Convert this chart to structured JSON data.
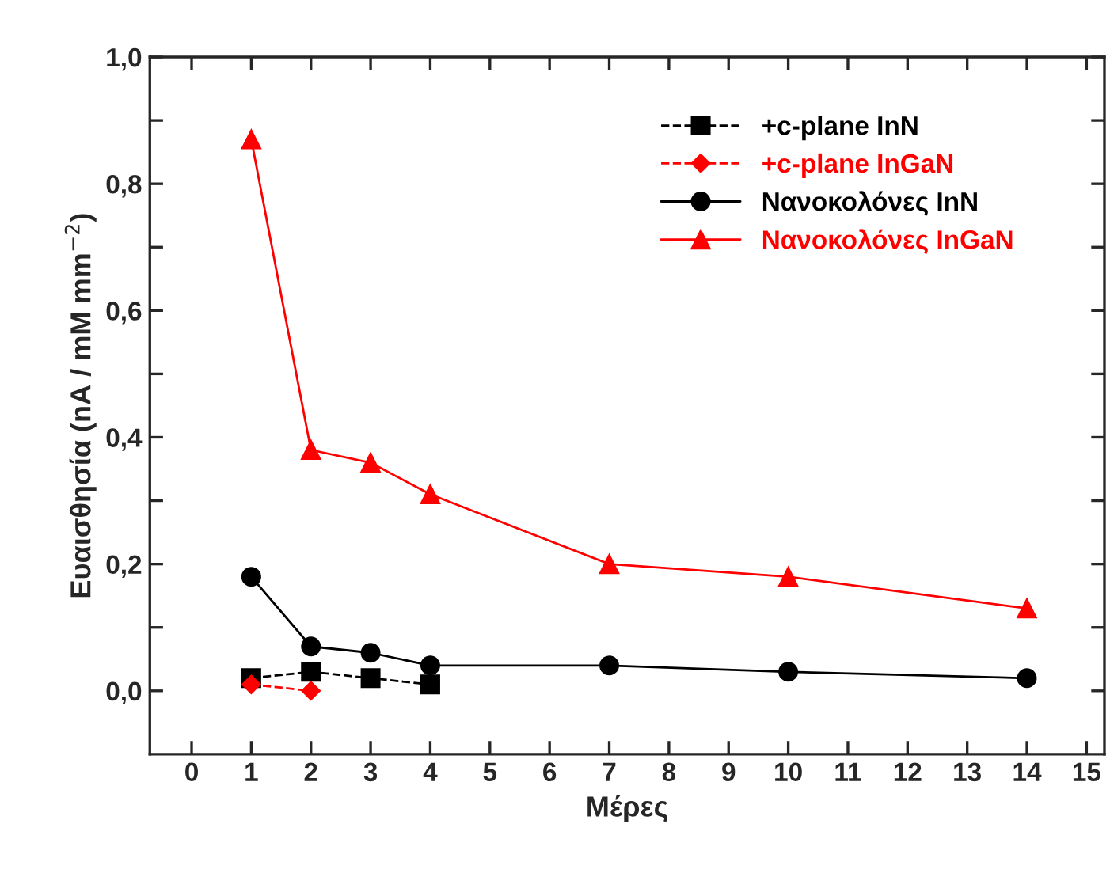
{
  "chart_data": {
    "type": "line",
    "xlabel": "Μέρες",
    "ylabel": "Ευαισθησία (nA / mM mm$^{−2}$)",
    "xlim": [
      -0.7,
      15.3
    ],
    "xticks": [
      0,
      1,
      2,
      3,
      4,
      5,
      6,
      7,
      8,
      9,
      10,
      11,
      12,
      13,
      14,
      15
    ],
    "ylim": [
      -0.1,
      1.0
    ],
    "yticks": [
      {
        "value": 0.0,
        "label": "0,0"
      },
      {
        "value": 0.1,
        "label": null
      },
      {
        "value": 0.2,
        "label": "0,2"
      },
      {
        "value": 0.3,
        "label": null
      },
      {
        "value": 0.4,
        "label": "0,4"
      },
      {
        "value": 0.5,
        "label": null
      },
      {
        "value": 0.6,
        "label": "0,6"
      },
      {
        "value": 0.7,
        "label": null
      },
      {
        "value": 0.8,
        "label": "0,8"
      },
      {
        "value": 0.9,
        "label": null
      },
      {
        "value": 1.0,
        "label": "1,0"
      }
    ],
    "grid": false,
    "legend": "top right",
    "series": [
      {
        "name": "+c-plane InN",
        "color": "#000000",
        "marker": "square",
        "line_style": "dashed",
        "x": [
          1,
          2,
          3,
          4
        ],
        "values": [
          0.02,
          0.03,
          0.02,
          0.01
        ]
      },
      {
        "name": "+c-plane InGaN",
        "color": "#ff0000",
        "marker": "diamond",
        "line_style": "dashed",
        "x": [
          1,
          2
        ],
        "values": [
          0.01,
          0.0
        ]
      },
      {
        "name": "Νανοκολόνες InN",
        "color": "#000000",
        "marker": "circle",
        "line_style": "solid",
        "x": [
          1,
          2,
          3,
          4,
          7,
          10,
          14
        ],
        "values": [
          0.18,
          0.07,
          0.06,
          0.04,
          0.04,
          0.03,
          0.02
        ]
      },
      {
        "name": "Νανοκολόνες InGaN",
        "color": "#ff0000",
        "marker": "triangle",
        "line_style": "solid",
        "x": [
          1,
          2,
          3,
          4,
          7,
          10,
          14
        ],
        "values": [
          0.87,
          0.38,
          0.36,
          0.31,
          0.2,
          0.18,
          0.13
        ]
      }
    ]
  }
}
